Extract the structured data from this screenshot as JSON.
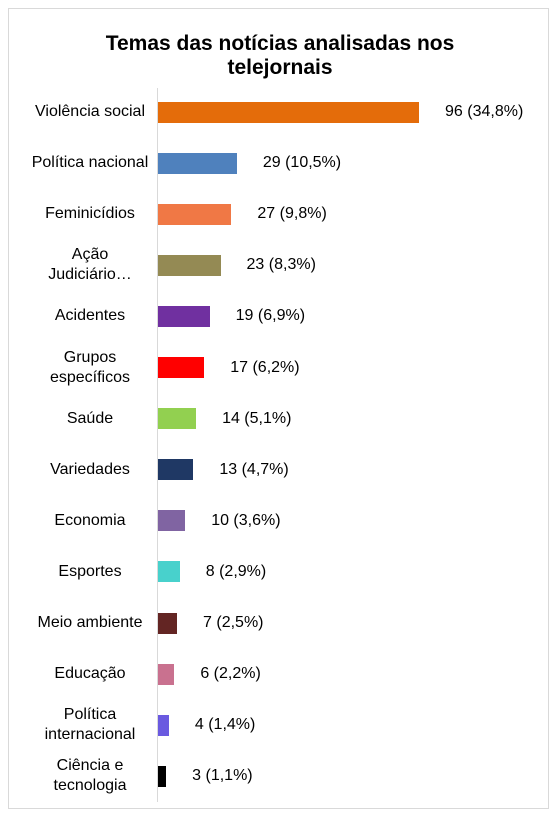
{
  "chart_data": {
    "type": "bar",
    "orientation": "horizontal",
    "title": "Temas das notícias analisadas nos telejornais",
    "categories": [
      "Violência social",
      "Política nacional",
      "Feminicídios",
      "Ação Judiciário…",
      "Acidentes",
      "Grupos específicos",
      "Saúde",
      "Variedades",
      "Economia",
      "Esportes",
      "Meio ambiente",
      "Educação",
      "Política internacional",
      "Ciência e tecnologia"
    ],
    "values": [
      96,
      29,
      27,
      23,
      19,
      17,
      14,
      13,
      10,
      8,
      7,
      6,
      4,
      3
    ],
    "value_labels": [
      "96 (34,8%)",
      "29 (10,5%)",
      "27 (9,8%)",
      "23 (8,3%)",
      "19 (6,9%)",
      "17 (6,2%)",
      "14 (5,1%)",
      "13 (4,7%)",
      "10 (3,6%)",
      "8 (2,9%)",
      "7 (2,5%)",
      "6 (2,2%)",
      "4 (1,4%)",
      "3 (1,1%)"
    ],
    "colors": [
      "#e46c0a",
      "#4f81bd",
      "#f07845",
      "#948a54",
      "#7030a0",
      "#ff0000",
      "#92d050",
      "#1f3864",
      "#8064a2",
      "#48d1cc",
      "#632523",
      "#c9718f",
      "#6a5ae0",
      "#000000"
    ]
  }
}
